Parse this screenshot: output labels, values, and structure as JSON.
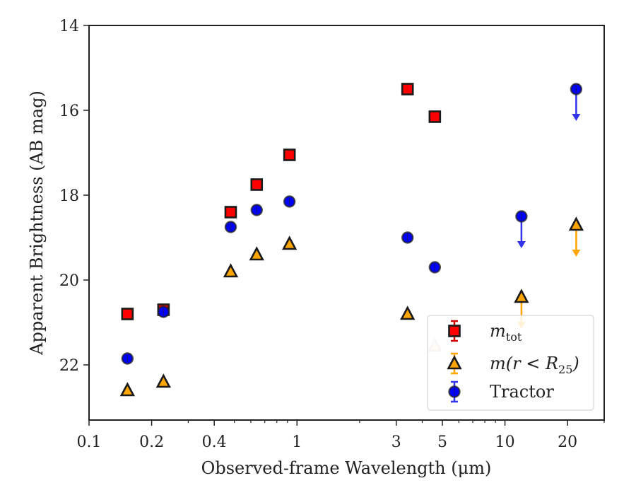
{
  "chart_data": {
    "type": "scatter",
    "title": "",
    "xlabel": "Observed-frame Wavelength (μm)",
    "ylabel": "Apparent Brightness (AB mag)",
    "x_scale": "log",
    "y_inverted": true,
    "xlim": [
      0.1,
      30
    ],
    "ylim": [
      23.3,
      14
    ],
    "x_ticks": [
      {
        "value": 0.1,
        "label": "0.1"
      },
      {
        "value": 0.2,
        "label": "0.2"
      },
      {
        "value": 0.4,
        "label": "0.4"
      },
      {
        "value": 1,
        "label": "1"
      },
      {
        "value": 3,
        "label": "3"
      },
      {
        "value": 5,
        "label": "5"
      },
      {
        "value": 10,
        "label": "10"
      },
      {
        "value": 20,
        "label": "20"
      }
    ],
    "y_ticks": [
      {
        "value": 14,
        "label": "14"
      },
      {
        "value": 16,
        "label": "16"
      },
      {
        "value": 18,
        "label": "18"
      },
      {
        "value": 20,
        "label": "20"
      },
      {
        "value": 22,
        "label": "22"
      }
    ],
    "grid": false,
    "legend_position": "lower-right",
    "series": [
      {
        "name": "m_tot",
        "label_main": "m",
        "label_sub": "tot",
        "marker": "square",
        "color": "#ff0000",
        "points": [
          {
            "x": 0.153,
            "y": 20.8
          },
          {
            "x": 0.228,
            "y": 20.7
          },
          {
            "x": 0.48,
            "y": 18.4
          },
          {
            "x": 0.64,
            "y": 17.75
          },
          {
            "x": 0.92,
            "y": 17.05
          },
          {
            "x": 3.4,
            "y": 15.5
          },
          {
            "x": 4.6,
            "y": 16.15
          }
        ]
      },
      {
        "name": "m(r < R_25)",
        "label_main": "m(r < R",
        "label_sub": "25",
        "label_end": ")",
        "marker": "triangle",
        "color": "#ffa500",
        "points": [
          {
            "x": 0.153,
            "y": 22.6
          },
          {
            "x": 0.228,
            "y": 22.4
          },
          {
            "x": 0.48,
            "y": 19.8
          },
          {
            "x": 0.64,
            "y": 19.4
          },
          {
            "x": 0.92,
            "y": 19.15
          },
          {
            "x": 3.4,
            "y": 20.8
          },
          {
            "x": 4.6,
            "y": 21.55,
            "faded": true
          },
          {
            "x": 12.0,
            "y": 20.4,
            "upper_limit": true
          },
          {
            "x": 22.0,
            "y": 18.7,
            "upper_limit": true
          }
        ]
      },
      {
        "name": "Tractor",
        "label_main": "Tractor",
        "marker": "circle",
        "color": "#0000ff",
        "points": [
          {
            "x": 0.153,
            "y": 21.85
          },
          {
            "x": 0.228,
            "y": 20.75
          },
          {
            "x": 0.48,
            "y": 18.75
          },
          {
            "x": 0.64,
            "y": 18.35
          },
          {
            "x": 0.92,
            "y": 18.15
          },
          {
            "x": 3.4,
            "y": 19.0
          },
          {
            "x": 4.6,
            "y": 19.7
          },
          {
            "x": 12.0,
            "y": 18.5,
            "upper_limit": true
          },
          {
            "x": 22.0,
            "y": 15.5,
            "upper_limit": true
          }
        ]
      }
    ]
  }
}
